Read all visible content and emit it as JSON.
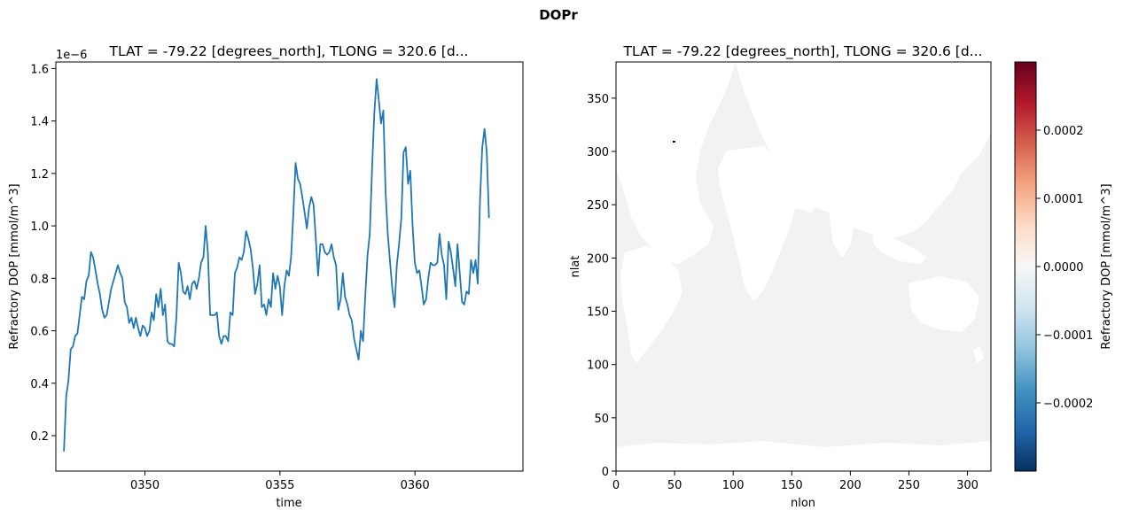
{
  "figure": {
    "suptitle": "DOPr"
  },
  "chart_data": [
    {
      "type": "line",
      "title": "TLAT = -79.22 [degrees_north], TLONG = 320.6 [d...",
      "xlabel": "time",
      "ylabel": "Refractory DOP [mmol/m^3]",
      "y_offset_text": "1e−6",
      "xlim": [
        346.7,
        364.0
      ],
      "ylim": [
        0.065,
        1.625
      ],
      "x_ticks": [
        350,
        355,
        360
      ],
      "x_tick_labels": [
        "0350",
        "0355",
        "0360"
      ],
      "y_ticks": [
        0.2,
        0.4,
        0.6,
        0.8,
        1.0,
        1.2,
        1.4,
        1.6
      ],
      "y_tick_labels": [
        "0.2",
        "0.4",
        "0.6",
        "0.8",
        "1.0",
        "1.2",
        "1.4",
        "1.6"
      ],
      "grid": false,
      "series": [
        {
          "color": "#1f77b4",
          "x_start": 347.0,
          "x_step": 0.0833,
          "values": [
            0.14,
            0.35,
            0.41,
            0.53,
            0.54,
            0.58,
            0.59,
            0.66,
            0.73,
            0.72,
            0.79,
            0.81,
            0.9,
            0.88,
            0.83,
            0.78,
            0.74,
            0.68,
            0.65,
            0.66,
            0.71,
            0.76,
            0.79,
            0.82,
            0.85,
            0.82,
            0.8,
            0.71,
            0.69,
            0.63,
            0.65,
            0.61,
            0.65,
            0.61,
            0.58,
            0.62,
            0.61,
            0.58,
            0.6,
            0.67,
            0.64,
            0.74,
            0.69,
            0.76,
            0.66,
            0.7,
            0.56,
            0.55,
            0.55,
            0.54,
            0.65,
            0.86,
            0.82,
            0.75,
            0.74,
            0.77,
            0.72,
            0.78,
            0.79,
            0.76,
            0.8,
            0.86,
            0.88,
            1.0,
            0.9,
            0.66,
            0.66,
            0.66,
            0.67,
            0.58,
            0.55,
            0.58,
            0.58,
            0.56,
            0.67,
            0.66,
            0.82,
            0.84,
            0.88,
            0.87,
            0.9,
            0.98,
            0.95,
            0.91,
            0.84,
            0.74,
            0.78,
            0.85,
            0.69,
            0.7,
            0.66,
            0.72,
            0.69,
            0.82,
            0.76,
            0.81,
            0.77,
            0.66,
            0.77,
            0.83,
            0.81,
            0.88,
            1.05,
            1.24,
            1.18,
            1.16,
            1.11,
            1.05,
            0.99,
            1.07,
            1.11,
            1.08,
            0.95,
            0.81,
            0.93,
            0.93,
            0.9,
            0.89,
            0.9,
            0.93,
            0.88,
            0.85,
            0.68,
            0.72,
            0.82,
            0.73,
            0.7,
            0.66,
            0.64,
            0.57,
            0.53,
            0.49,
            0.6,
            0.56,
            0.74,
            0.89,
            0.97,
            1.22,
            1.43,
            1.56,
            1.48,
            1.39,
            1.44,
            1.13,
            0.97,
            0.86,
            0.76,
            0.69,
            0.85,
            0.93,
            1.03,
            1.28,
            1.3,
            1.16,
            1.21,
            1.0,
            0.86,
            0.82,
            0.83,
            0.77,
            0.7,
            0.72,
            0.8,
            0.86,
            0.85,
            0.85,
            0.86,
            0.97,
            0.89,
            0.85,
            0.72,
            0.94,
            0.9,
            0.84,
            0.77,
            0.93,
            0.82,
            0.71,
            0.7,
            0.75,
            0.74,
            0.87,
            0.82,
            0.87,
            0.78,
            1.1,
            1.3,
            1.37,
            1.28,
            1.03
          ]
        }
      ]
    },
    {
      "type": "heatmap",
      "title": "TLAT = -79.22 [degrees_north], TLONG = 320.6 [d...",
      "xlabel": "nlon",
      "ylabel": "nlat",
      "xlim": [
        0,
        320
      ],
      "ylim": [
        0,
        384
      ],
      "x_ticks": [
        0,
        50,
        100,
        150,
        200,
        250,
        300
      ],
      "x_tick_labels": [
        "0",
        "50",
        "100",
        "150",
        "200",
        "250",
        "300"
      ],
      "y_ticks": [
        0,
        50,
        100,
        150,
        200,
        250,
        300,
        350
      ],
      "y_tick_labels": [
        "0",
        "50",
        "100",
        "150",
        "200",
        "250",
        "300",
        "350"
      ],
      "colormap": "RdBu_r",
      "field_value": 0.0,
      "colorbar": {
        "label": "Refractory DOP [mmol/m^3]",
        "vmin": -0.0003,
        "vmax": 0.0003,
        "ticks": [
          -0.0002,
          -0.0001,
          0.0,
          0.0001,
          0.0002
        ],
        "tick_labels": [
          "−0.0002",
          "−0.0001",
          "0.0000",
          "0.0001",
          "0.0002"
        ]
      }
    }
  ]
}
